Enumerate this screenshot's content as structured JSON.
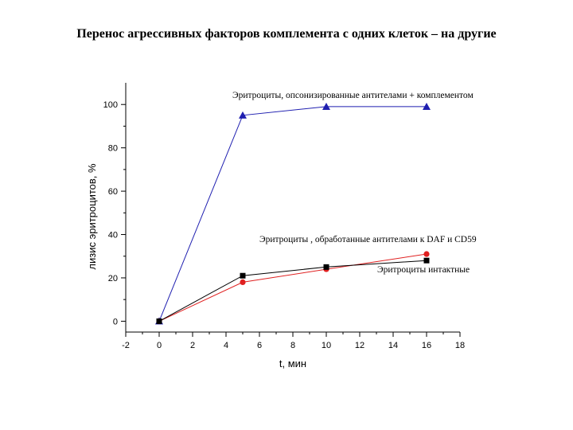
{
  "title": "Перенос агрессивных факторов комплемента с одних клеток – на другие",
  "chart_data": {
    "type": "line",
    "xlabel": "t, мин",
    "ylabel": "лизис эритроцитов, %",
    "xlim": [
      -2,
      18
    ],
    "ylim": [
      -5,
      110
    ],
    "xticks": [
      -2,
      0,
      2,
      4,
      6,
      8,
      10,
      12,
      14,
      16,
      18
    ],
    "yticks": [
      0,
      20,
      40,
      60,
      80,
      100
    ],
    "grid": false,
    "series": [
      {
        "name": "Эритроциты, опсонизированные антителами + комплементом",
        "color": "#1f1fb0",
        "marker": "triangle",
        "x": [
          0,
          5,
          10,
          16
        ],
        "y": [
          0,
          95,
          99,
          99
        ]
      },
      {
        "name": "Эритроциты , обработанные антителами к DAF и CD59",
        "color": "#e02020",
        "marker": "circle",
        "x": [
          0,
          5,
          10,
          16
        ],
        "y": [
          0,
          18,
          24,
          31
        ]
      },
      {
        "name": "Эритроциты интактные",
        "color": "#000000",
        "marker": "square",
        "x": [
          0,
          5,
          10,
          16
        ],
        "y": [
          0,
          21,
          25,
          28
        ]
      }
    ]
  }
}
